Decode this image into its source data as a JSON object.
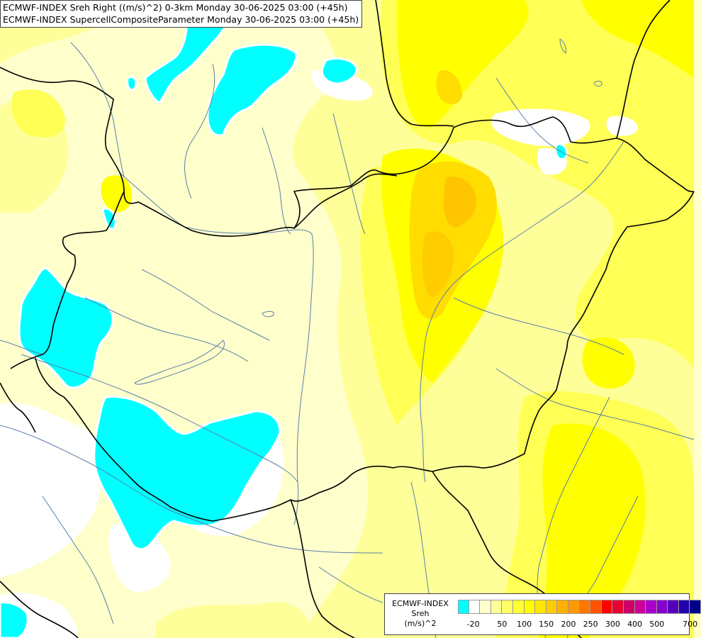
{
  "map": {
    "title_line1": "ECMWF-INDEX Sreh Right ((m/s)^2) 0-3km Monday 30-06-2025 03:00 (+45h)",
    "title_line2": "ECMWF-INDEX SupercellCompositeParameter Monday 30-06-2025 03:00 (+45h)",
    "fill_colors": {
      "negative": "#00ffff",
      "zero": "#ffffff",
      "pale": "#ffffcc",
      "light": "#ffff99",
      "medium": "#ffff55",
      "strong": "#ffff00",
      "gold": "#ffdd00",
      "orange": "#ffc000"
    },
    "border_color": "#000000",
    "river_color": "#5a7fa8"
  },
  "legend": {
    "title_line1": "ECMWF-INDEX",
    "title_line2": "Sreh",
    "title_line3": "(m/s)^2",
    "colors": [
      "#00ffff",
      "#ffffff",
      "#ffffcc",
      "#ffff99",
      "#ffff66",
      "#ffff33",
      "#ffff00",
      "#ffe600",
      "#ffcc00",
      "#ffb000",
      "#ff9900",
      "#ff7700",
      "#ff5500",
      "#ff0000",
      "#e60033",
      "#cc0066",
      "#cc0099",
      "#aa00cc",
      "#8800cc",
      "#5500bb",
      "#2200aa",
      "#000088"
    ],
    "ticks": [
      "-20",
      "50",
      "100",
      "150",
      "200",
      "250",
      "300",
      "400",
      "500",
      "700"
    ]
  }
}
